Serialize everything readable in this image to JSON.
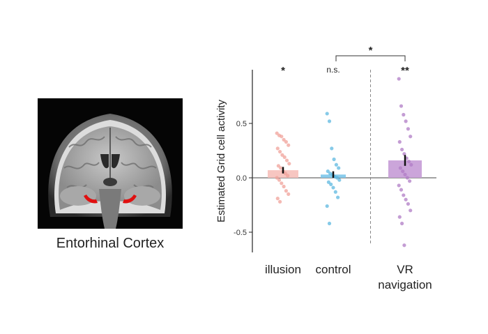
{
  "figure": {
    "region_label": "Entorhinal Cortex"
  },
  "chart_data": {
    "type": "bar",
    "ylabel": "Estimated Grid cell activity",
    "xlabel": "",
    "ylim": [
      -0.7,
      1.0
    ],
    "yticks": [
      -0.5,
      0.0,
      0.5
    ],
    "ytick_labels": [
      "-0.5",
      "0.0",
      "0.5"
    ],
    "grid": false,
    "categories": [
      "illusion",
      "control",
      "VR\nnavigation"
    ],
    "category_lines": [
      [
        "illusion"
      ],
      [
        "control"
      ],
      [
        "VR",
        "navigation"
      ]
    ],
    "means": [
      0.07,
      0.03,
      0.16
    ],
    "sem": [
      0.03,
      0.03,
      0.05
    ],
    "colors": [
      "#f0a29a",
      "#5db8e0",
      "#b07cc6"
    ],
    "bar_fill": [
      "#f6c0ba",
      "#7cc6ea",
      "#c59bd6"
    ],
    "points": [
      [
        0.41,
        0.39,
        0.38,
        0.35,
        0.33,
        0.3,
        0.27,
        0.24,
        0.21,
        0.19,
        0.16,
        0.13,
        0.11,
        0.09,
        0.06,
        0.04,
        0.02,
        0.0,
        -0.02,
        -0.05,
        -0.08,
        -0.12,
        -0.15,
        -0.19,
        -0.22
      ],
      [
        0.59,
        0.52,
        0.27,
        0.17,
        0.12,
        0.09,
        0.06,
        0.04,
        0.03,
        0.01,
        0.0,
        -0.02,
        -0.04,
        -0.06,
        -0.09,
        -0.13,
        -0.18,
        -0.26,
        -0.42
      ],
      [
        0.91,
        0.66,
        0.58,
        0.52,
        0.45,
        0.38,
        0.33,
        0.26,
        0.22,
        0.18,
        0.15,
        0.12,
        0.09,
        0.06,
        0.03,
        0.0,
        -0.03,
        -0.07,
        -0.11,
        -0.16,
        -0.2,
        -0.24,
        -0.3,
        -0.36,
        -0.42,
        -0.62
      ]
    ],
    "annotations": {
      "per_group": [
        "*",
        "n.s.",
        "**"
      ],
      "comparison": {
        "from": 1,
        "to": 2,
        "label": "*"
      }
    },
    "divider_between": [
      1,
      2
    ]
  }
}
